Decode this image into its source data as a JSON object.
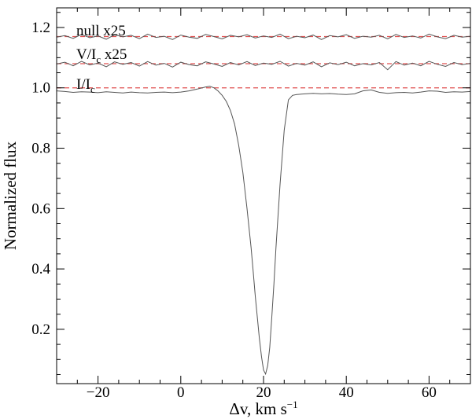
{
  "chart_data": {
    "type": "line",
    "xlabel_main": "Δv, km s",
    "xlabel_sup": "−1",
    "ylabel": "Normalized flux",
    "xlim": [
      -30,
      70
    ],
    "ylim": [
      0.02,
      1.265
    ],
    "x_ticks": [
      -20,
      0,
      20,
      40,
      60
    ],
    "x_tick_labels": [
      "−20",
      "0",
      "20",
      "40",
      "60"
    ],
    "y_ticks": [
      0.2,
      0.4,
      0.6,
      0.8,
      1.0,
      1.2
    ],
    "y_tick_labels": [
      "0.2",
      "0.4",
      "0.6",
      "0.8",
      "1.0",
      "1.2"
    ],
    "colors": {
      "profile": "#555555",
      "reference": "#e05050",
      "axis": "#000000"
    },
    "series": [
      {
        "label_main": "null x25",
        "label_sub": "",
        "label_tail": "",
        "reference_level": 1.17,
        "x": [
          -30,
          -28,
          -26,
          -24,
          -22,
          -20,
          -18,
          -16,
          -14,
          -12,
          -10,
          -8,
          -6,
          -4,
          -2,
          0,
          2,
          4,
          6,
          8,
          10,
          12,
          14,
          16,
          18,
          20,
          22,
          24,
          26,
          28,
          30,
          32,
          34,
          36,
          38,
          40,
          42,
          44,
          46,
          48,
          50,
          52,
          54,
          56,
          58,
          60,
          62,
          64,
          66,
          68,
          70
        ],
        "y": [
          1.168,
          1.173,
          1.164,
          1.177,
          1.166,
          1.172,
          1.161,
          1.176,
          1.169,
          1.174,
          1.163,
          1.178,
          1.167,
          1.171,
          1.16,
          1.175,
          1.168,
          1.164,
          1.177,
          1.17,
          1.162,
          1.174,
          1.169,
          1.176,
          1.165,
          1.172,
          1.167,
          1.178,
          1.163,
          1.171,
          1.166,
          1.175,
          1.16,
          1.173,
          1.169,
          1.176,
          1.164,
          1.171,
          1.168,
          1.174,
          1.162,
          1.177,
          1.167,
          1.172,
          1.165,
          1.178,
          1.169,
          1.163,
          1.174,
          1.168,
          1.171
        ]
      },
      {
        "label_main": "V/I",
        "label_sub": "c",
        "label_tail": " x25",
        "reference_level": 1.08,
        "x": [
          -30,
          -28,
          -26,
          -24,
          -22,
          -20,
          -18,
          -16,
          -14,
          -12,
          -10,
          -8,
          -6,
          -4,
          -2,
          0,
          2,
          4,
          6,
          8,
          10,
          12,
          14,
          16,
          18,
          20,
          22,
          24,
          26,
          28,
          30,
          32,
          34,
          36,
          38,
          40,
          42,
          44,
          46,
          48,
          50,
          52,
          54,
          56,
          58,
          60,
          62,
          64,
          66,
          68,
          70
        ],
        "y": [
          1.079,
          1.085,
          1.073,
          1.088,
          1.076,
          1.082,
          1.07,
          1.086,
          1.078,
          1.084,
          1.072,
          1.087,
          1.075,
          1.081,
          1.069,
          1.085,
          1.077,
          1.073,
          1.086,
          1.079,
          1.071,
          1.084,
          1.076,
          1.087,
          1.074,
          1.082,
          1.078,
          1.088,
          1.072,
          1.081,
          1.075,
          1.086,
          1.07,
          1.083,
          1.077,
          1.085,
          1.073,
          1.08,
          1.076,
          1.084,
          1.06,
          1.087,
          1.075,
          1.082,
          1.073,
          1.088,
          1.078,
          1.071,
          1.084,
          1.077,
          1.081
        ]
      },
      {
        "label_main": "I/I",
        "label_sub": "c",
        "label_tail": "",
        "reference_level": 1.0,
        "x": [
          -30,
          -28,
          -26,
          -24,
          -22,
          -20,
          -18,
          -16,
          -14,
          -12,
          -10,
          -8,
          -6,
          -4,
          -2,
          0,
          2,
          4,
          6,
          7,
          8,
          9,
          10,
          11,
          12,
          13,
          14,
          15,
          16,
          17,
          17.5,
          18,
          18.5,
          19,
          19.5,
          20,
          20.5,
          21,
          21.5,
          22,
          22.5,
          23,
          24,
          25,
          26,
          27,
          28,
          30,
          32,
          34,
          36,
          38,
          40,
          42,
          44,
          46,
          48,
          50,
          52,
          54,
          56,
          58,
          60,
          62,
          64,
          66,
          68,
          70
        ],
        "y": [
          0.99,
          0.988,
          0.985,
          0.987,
          0.986,
          0.984,
          0.987,
          0.985,
          0.983,
          0.986,
          0.984,
          0.983,
          0.985,
          0.986,
          0.984,
          0.986,
          0.99,
          0.996,
          1.003,
          1.005,
          1.0,
          0.99,
          0.975,
          0.955,
          0.925,
          0.88,
          0.81,
          0.72,
          0.6,
          0.47,
          0.39,
          0.31,
          0.24,
          0.17,
          0.11,
          0.065,
          0.052,
          0.08,
          0.14,
          0.24,
          0.35,
          0.47,
          0.68,
          0.86,
          0.96,
          0.975,
          0.978,
          0.98,
          0.982,
          0.98,
          0.981,
          0.979,
          0.978,
          0.98,
          0.99,
          0.993,
          0.985,
          0.982,
          0.984,
          0.985,
          0.983,
          0.986,
          0.99,
          0.989,
          0.985,
          0.987,
          0.986,
          0.988
        ]
      }
    ]
  }
}
